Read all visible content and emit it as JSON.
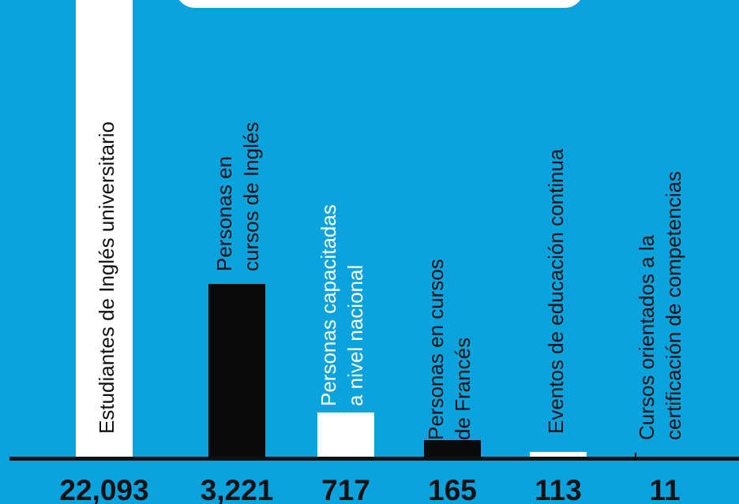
{
  "colors": {
    "background": "#0aa3de",
    "bar_white": "#ffffff",
    "bar_black": "#0b0b0b",
    "baseline": "#111111"
  },
  "chart_data": {
    "type": "bar",
    "categories": [
      "Estudiantes de Inglés universitario",
      "Personas en\ncursos de Inglés",
      "Personas capacitadas\na nivel nacional",
      "Personas en cursos\nde Francés",
      "Eventos de educación continua",
      "Cursos orientados a la\ncertificación de competencias"
    ],
    "values": [
      22093,
      3221,
      717,
      165,
      113,
      11
    ],
    "value_labels": [
      "22,093",
      "3,221",
      "717",
      "165",
      "113",
      "11"
    ],
    "bar_colors": [
      "#ffffff",
      "#0b0b0b",
      "#ffffff",
      "#0b0b0b",
      "#ffffff",
      "#0b0b0b"
    ],
    "label_colors": [
      "#111111",
      "#111111",
      "#ffffff",
      "#111111",
      "#111111",
      "#111111"
    ],
    "orientation": "vertical bars with rotated category labels",
    "axis_scale": "log",
    "ylim": [
      1,
      22093
    ],
    "legend": "none",
    "grid": false
  }
}
